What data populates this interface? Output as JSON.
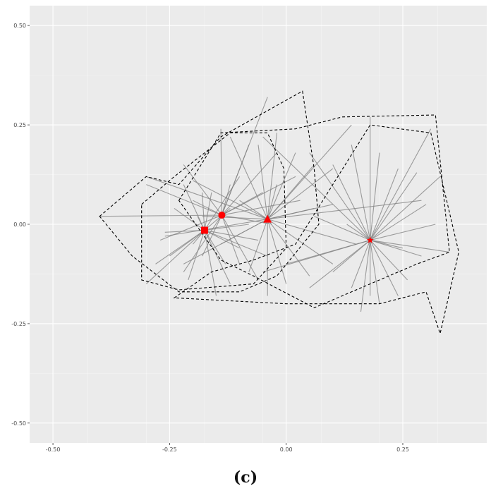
{
  "caption": "(c)",
  "chart_data": {
    "type": "scatter",
    "xlim": [
      -0.55,
      0.43
    ],
    "ylim": [
      -0.55,
      0.55
    ],
    "x_ticks": [
      -0.5,
      -0.25,
      0.0,
      0.25
    ],
    "x_tick_labels": [
      "-0.50",
      "-0.25",
      "0.00",
      "0.25"
    ],
    "y_ticks": [
      0.5,
      0.25,
      0.0,
      -0.25,
      -0.5
    ],
    "y_tick_labels": [
      "0.50",
      "0.25",
      "0.00",
      "-0.25",
      "-0.50"
    ],
    "grid": true,
    "colors": {
      "panel": "#ebebeb",
      "grid": "#ffffff",
      "centroid": "#ff0000",
      "spoke": "#7f7f7f",
      "hull": "#000000"
    },
    "groups": [
      {
        "centroid": [
          -0.175,
          -0.015
        ],
        "marker": "square",
        "members": [
          [
            -0.3,
            -0.15
          ],
          [
            -0.28,
            -0.1
          ],
          [
            -0.26,
            -0.02
          ],
          [
            -0.24,
            0.04
          ],
          [
            -0.22,
            0.1
          ],
          [
            -0.2,
            -0.05
          ],
          [
            -0.19,
            0.02
          ],
          [
            -0.15,
            -0.18
          ],
          [
            -0.13,
            -0.1
          ],
          [
            -0.1,
            -0.06
          ],
          [
            -0.08,
            0.0
          ],
          [
            -0.06,
            -0.04
          ],
          [
            -0.04,
            -0.08
          ],
          [
            -0.12,
            0.04
          ],
          [
            -0.1,
            0.12
          ],
          [
            -0.16,
            0.08
          ],
          [
            -0.18,
            0.08
          ],
          [
            -0.21,
            -0.14
          ],
          [
            -0.25,
            -0.08
          ],
          [
            -0.12,
            -0.15
          ]
        ],
        "hull": [
          [
            -0.31,
            0.05
          ],
          [
            -0.24,
            0.12
          ],
          [
            -0.12,
            0.23
          ],
          [
            -0.04,
            0.23
          ],
          [
            -0.005,
            0.14
          ],
          [
            0.0,
            -0.06
          ],
          [
            -0.07,
            -0.15
          ],
          [
            -0.23,
            -0.165
          ],
          [
            -0.31,
            -0.14
          ]
        ]
      },
      {
        "centroid": [
          -0.138,
          0.023
        ],
        "marker": "circle",
        "members": [
          [
            -0.4,
            0.02
          ],
          [
            -0.3,
            0.1
          ],
          [
            -0.22,
            0.15
          ],
          [
            -0.14,
            0.24
          ],
          [
            -0.08,
            0.2
          ],
          [
            -0.04,
            0.32
          ],
          [
            -0.02,
            0.18
          ],
          [
            0.02,
            0.12
          ],
          [
            0.03,
            0.06
          ],
          [
            -0.05,
            0.08
          ],
          [
            -0.18,
            -0.08
          ],
          [
            -0.22,
            -0.12
          ],
          [
            -0.27,
            -0.04
          ],
          [
            -0.1,
            -0.1
          ],
          [
            -0.06,
            -0.14
          ],
          [
            -0.12,
            0.1
          ],
          [
            -0.2,
            0.06
          ],
          [
            -0.03,
            0.0
          ]
        ],
        "hull": [
          [
            -0.4,
            0.02
          ],
          [
            -0.3,
            0.12
          ],
          [
            -0.23,
            0.1
          ],
          [
            -0.14,
            0.22
          ],
          [
            0.035,
            0.335
          ],
          [
            0.06,
            0.14
          ],
          [
            0.07,
            0.0
          ],
          [
            -0.02,
            -0.13
          ],
          [
            -0.1,
            -0.17
          ],
          [
            -0.23,
            -0.17
          ],
          [
            -0.33,
            -0.08
          ]
        ]
      },
      {
        "centroid": [
          -0.04,
          0.013
        ],
        "marker": "triangle",
        "members": [
          [
            -0.3,
            0.12
          ],
          [
            -0.2,
            0.11
          ],
          [
            -0.12,
            0.22
          ],
          [
            -0.06,
            0.2
          ],
          [
            -0.02,
            0.23
          ],
          [
            0.02,
            0.18
          ],
          [
            0.06,
            0.15
          ],
          [
            0.1,
            0.14
          ],
          [
            0.1,
            -0.1
          ],
          [
            0.05,
            -0.13
          ],
          [
            0.0,
            -0.15
          ],
          [
            -0.04,
            -0.18
          ],
          [
            -0.08,
            -0.12
          ],
          [
            -0.14,
            -0.05
          ],
          [
            -0.22,
            -0.1
          ],
          [
            -0.26,
            -0.03
          ],
          [
            -0.18,
            0.02
          ],
          [
            0.06,
            0.04
          ],
          [
            0.1,
            0.05
          ],
          [
            -0.1,
            0.06
          ],
          [
            0.15,
            -0.05
          ],
          [
            0.14,
            0.25
          ],
          [
            0.29,
            0.06
          ],
          [
            -0.02,
            0.1
          ]
        ],
        "hull": [
          [
            -0.23,
            0.06
          ],
          [
            -0.14,
            0.23
          ],
          [
            0.02,
            0.24
          ],
          [
            0.12,
            0.27
          ],
          [
            0.32,
            0.275
          ],
          [
            0.35,
            -0.07
          ],
          [
            0.28,
            -0.1
          ],
          [
            0.06,
            -0.21
          ],
          [
            -0.07,
            -0.13
          ],
          [
            -0.14,
            -0.09
          ]
        ]
      },
      {
        "centroid": [
          0.18,
          -0.04
        ],
        "marker": "star",
        "members": [
          [
            -0.05,
            0.22
          ],
          [
            0.05,
            0.18
          ],
          [
            0.1,
            0.15
          ],
          [
            0.14,
            0.2
          ],
          [
            0.18,
            0.27
          ],
          [
            0.2,
            0.18
          ],
          [
            0.24,
            0.14
          ],
          [
            0.28,
            0.13
          ],
          [
            0.31,
            0.24
          ],
          [
            0.33,
            0.12
          ],
          [
            0.3,
            0.05
          ],
          [
            0.32,
            0.0
          ],
          [
            0.35,
            -0.07
          ],
          [
            0.29,
            -0.08
          ],
          [
            0.26,
            -0.14
          ],
          [
            0.24,
            -0.18
          ],
          [
            0.2,
            -0.2
          ],
          [
            0.18,
            -0.18
          ],
          [
            0.16,
            -0.22
          ],
          [
            0.14,
            -0.16
          ],
          [
            0.1,
            -0.12
          ],
          [
            0.05,
            -0.16
          ],
          [
            0.0,
            -0.1
          ],
          [
            -0.05,
            -0.12
          ],
          [
            0.06,
            0.02
          ],
          [
            0.13,
            0.0
          ],
          [
            0.25,
            -0.06
          ]
        ],
        "hull": [
          [
            -0.24,
            -0.185
          ],
          [
            -0.16,
            -0.12
          ],
          [
            -0.07,
            -0.09
          ],
          [
            0.02,
            -0.05
          ],
          [
            0.1,
            0.1
          ],
          [
            0.18,
            0.25
          ],
          [
            0.31,
            0.23
          ],
          [
            0.37,
            -0.07
          ],
          [
            0.33,
            -0.275
          ],
          [
            0.3,
            -0.17
          ],
          [
            0.2,
            -0.2
          ],
          [
            0.1,
            -0.2
          ],
          [
            -0.0,
            -0.2
          ]
        ]
      }
    ]
  }
}
